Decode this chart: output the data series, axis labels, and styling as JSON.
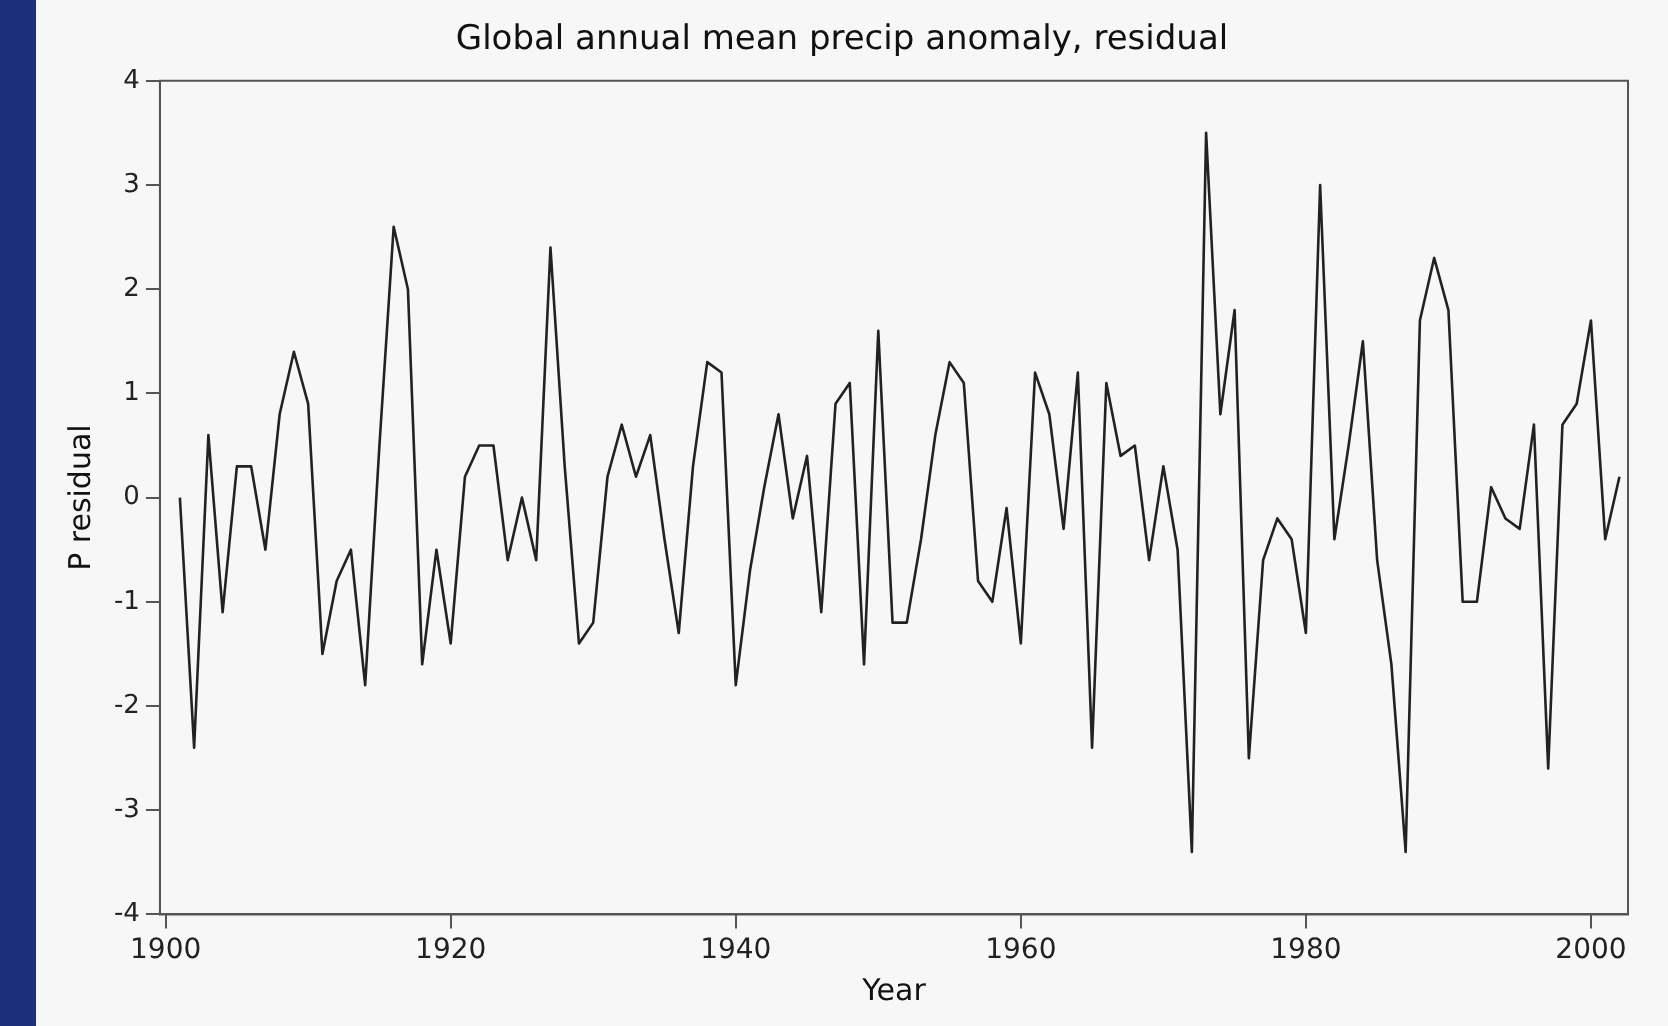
{
  "chart_data": {
    "type": "line",
    "title": "Global annual mean precip anomaly, residual",
    "xlabel": "Year",
    "ylabel": "P residual",
    "x": [
      1901,
      1902,
      1903,
      1904,
      1905,
      1906,
      1907,
      1908,
      1909,
      1910,
      1911,
      1912,
      1913,
      1914,
      1915,
      1916,
      1917,
      1918,
      1919,
      1920,
      1921,
      1922,
      1923,
      1924,
      1925,
      1926,
      1927,
      1928,
      1929,
      1930,
      1931,
      1932,
      1933,
      1934,
      1935,
      1936,
      1937,
      1938,
      1939,
      1940,
      1941,
      1942,
      1943,
      1944,
      1945,
      1946,
      1947,
      1948,
      1949,
      1950,
      1951,
      1952,
      1953,
      1954,
      1955,
      1956,
      1957,
      1958,
      1959,
      1960,
      1961,
      1962,
      1963,
      1964,
      1965,
      1966,
      1967,
      1968,
      1969,
      1970,
      1971,
      1972,
      1973,
      1974,
      1975,
      1976,
      1977,
      1978,
      1979,
      1980,
      1981,
      1982,
      1983,
      1984,
      1985,
      1986,
      1987,
      1988,
      1989,
      1990,
      1991,
      1992,
      1993,
      1994,
      1995,
      1996,
      1997,
      1998,
      1999,
      2000,
      2001,
      2002
    ],
    "series": [
      {
        "color": "#222222",
        "values": [
          0.0,
          -2.4,
          0.6,
          -1.1,
          0.3,
          0.3,
          -0.5,
          0.8,
          1.4,
          0.9,
          -1.5,
          -0.8,
          -0.5,
          -1.8,
          0.5,
          2.6,
          2.0,
          -1.6,
          -0.5,
          -1.4,
          0.2,
          0.5,
          0.5,
          -0.6,
          0.0,
          -0.6,
          2.4,
          0.3,
          -1.4,
          -1.2,
          0.2,
          0.7,
          0.2,
          0.6,
          -0.4,
          -1.3,
          0.3,
          1.3,
          1.2,
          -1.8,
          -0.7,
          0.1,
          0.8,
          -0.2,
          0.4,
          -1.1,
          0.9,
          1.1,
          -1.6,
          1.6,
          -1.2,
          -1.2,
          -0.4,
          0.6,
          1.3,
          1.1,
          -0.8,
          -1.0,
          -0.1,
          -1.4,
          1.2,
          0.8,
          -0.3,
          1.2,
          -2.4,
          1.1,
          0.4,
          0.5,
          -0.6,
          0.3,
          -0.5,
          -3.4,
          3.5,
          0.8,
          1.8,
          -2.5,
          -0.6,
          -0.2,
          -0.4,
          -1.3,
          3.0,
          -0.4,
          0.5,
          1.5,
          -0.6,
          -1.6,
          -3.4,
          1.7,
          2.3,
          1.8,
          -1.0,
          -1.0,
          0.1,
          -0.2,
          -0.3,
          0.7,
          -2.6,
          0.7,
          0.9,
          1.7,
          -0.4,
          0.2
        ]
      }
    ],
    "xlim": [
      1899.6,
      2002.6
    ],
    "xticks": [
      1900,
      1920,
      1940,
      1960,
      1980,
      2000
    ],
    "ylim": [
      -4,
      4
    ],
    "yticks": [
      -4,
      -3,
      -2,
      -1,
      0,
      1,
      2,
      3,
      4
    ],
    "grid": false,
    "legend": false,
    "marker": "none",
    "line_style": "solid"
  }
}
